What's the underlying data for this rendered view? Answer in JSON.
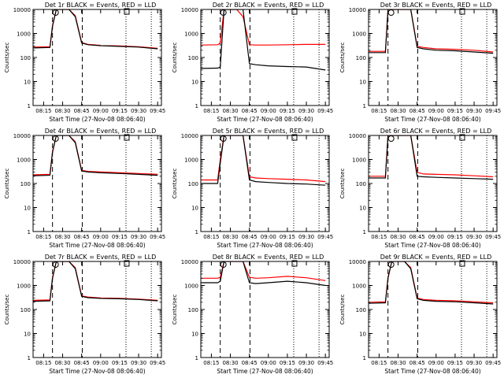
{
  "figure": {
    "background": "#ffffff",
    "series_colors": {
      "events": "#000000",
      "lld": "#ff0000"
    },
    "ylabel": "Counts/sec",
    "xlabel": "Start Time (27-Nov-08 08:06:40)",
    "x_ticks": [
      "08:15",
      "08:30",
      "08:45",
      "09:00",
      "09:15",
      "09:30",
      "09:45"
    ],
    "y_ticks": [
      "1",
      "10",
      "100",
      "1000",
      "10000"
    ],
    "marker_labels": [
      "S",
      "E"
    ]
  },
  "chart_data": [
    {
      "type": "line",
      "title": "Det 1r BLACK = Events, RED = LLD",
      "xlim": [
        "08:06:40",
        "09:48:00"
      ],
      "ylim": [
        1,
        10000
      ],
      "yscale": "log",
      "x": [
        "08:06:40",
        "08:20:00",
        "08:22:00",
        "08:25:00",
        "08:30:00",
        "08:35:00",
        "08:40:00",
        "08:45:00",
        "08:50:00",
        "09:00:00",
        "09:15:00",
        "09:30:00",
        "09:45:00"
      ],
      "series": [
        {
          "name": "Events",
          "color": "#000000",
          "values": [
            250,
            260,
            2000,
            10000,
            10000,
            10000,
            5000,
            400,
            340,
            310,
            290,
            270,
            230
          ]
        },
        {
          "name": "LLD",
          "color": "#ff0000",
          "values": [
            270,
            280,
            2200,
            10000,
            10000,
            10000,
            5500,
            420,
            350,
            320,
            300,
            280,
            240
          ]
        }
      ]
    },
    {
      "type": "line",
      "title": "Det 2r BLACK = Events, RED = LLD",
      "xlim": [
        "08:06:40",
        "09:48:00"
      ],
      "ylim": [
        1,
        10000
      ],
      "yscale": "log",
      "x": [
        "08:06:40",
        "08:20:00",
        "08:22:00",
        "08:25:00",
        "08:30:00",
        "08:35:00",
        "08:40:00",
        "08:45:00",
        "08:50:00",
        "09:00:00",
        "09:15:00",
        "09:30:00",
        "09:45:00"
      ],
      "series": [
        {
          "name": "Events",
          "color": "#000000",
          "values": [
            35,
            36,
            40,
            10000,
            10000,
            10000,
            10000,
            55,
            50,
            45,
            42,
            40,
            30
          ]
        },
        {
          "name": "LLD",
          "color": "#ff0000",
          "values": [
            330,
            340,
            400,
            10000,
            10000,
            10000,
            5000,
            340,
            330,
            330,
            340,
            350,
            350
          ]
        }
      ]
    },
    {
      "type": "line",
      "title": "Det 3r BLACK = Events, RED = LLD",
      "xlim": [
        "08:06:40",
        "09:48:00"
      ],
      "ylim": [
        1,
        10000
      ],
      "yscale": "log",
      "x": [
        "08:06:40",
        "08:20:00",
        "08:22:00",
        "08:25:00",
        "08:30:00",
        "08:35:00",
        "08:40:00",
        "08:45:00",
        "08:50:00",
        "09:00:00",
        "09:15:00",
        "09:30:00",
        "09:45:00"
      ],
      "series": [
        {
          "name": "Events",
          "color": "#000000",
          "values": [
            160,
            160,
            10000,
            10000,
            10000,
            10000,
            10000,
            260,
            230,
            200,
            190,
            170,
            150
          ]
        },
        {
          "name": "LLD",
          "color": "#ff0000",
          "values": [
            180,
            180,
            10000,
            10000,
            10000,
            10000,
            10000,
            290,
            260,
            230,
            220,
            200,
            170
          ]
        }
      ]
    },
    {
      "type": "line",
      "title": "Det 4r BLACK = Events, RED = LLD",
      "xlim": [
        "08:06:40",
        "09:48:00"
      ],
      "ylim": [
        1,
        10000
      ],
      "yscale": "log",
      "x": [
        "08:06:40",
        "08:20:00",
        "08:22:00",
        "08:25:00",
        "08:30:00",
        "08:35:00",
        "08:40:00",
        "08:45:00",
        "08:50:00",
        "09:00:00",
        "09:15:00",
        "09:30:00",
        "09:45:00"
      ],
      "series": [
        {
          "name": "Events",
          "color": "#000000",
          "values": [
            210,
            220,
            2000,
            10000,
            10000,
            10000,
            5000,
            330,
            300,
            280,
            260,
            240,
            220
          ]
        },
        {
          "name": "LLD",
          "color": "#ff0000",
          "values": [
            230,
            240,
            2200,
            10000,
            10000,
            10000,
            5500,
            350,
            320,
            300,
            280,
            260,
            240
          ]
        }
      ]
    },
    {
      "type": "line",
      "title": "Det 5r BLACK = Events, RED = LLD",
      "xlim": [
        "08:06:40",
        "09:48:00"
      ],
      "ylim": [
        1,
        10000
      ],
      "yscale": "log",
      "x": [
        "08:06:40",
        "08:20:00",
        "08:22:00",
        "08:25:00",
        "08:30:00",
        "08:35:00",
        "08:40:00",
        "08:45:00",
        "08:50:00",
        "09:00:00",
        "09:15:00",
        "09:30:00",
        "09:45:00"
      ],
      "series": [
        {
          "name": "Events",
          "color": "#000000",
          "values": [
            100,
            100,
            700,
            10000,
            10000,
            10000,
            10000,
            140,
            120,
            110,
            100,
            95,
            85
          ]
        },
        {
          "name": "LLD",
          "color": "#ff0000",
          "values": [
            140,
            140,
            1000,
            10000,
            10000,
            10000,
            10000,
            190,
            170,
            160,
            150,
            140,
            120
          ]
        }
      ]
    },
    {
      "type": "line",
      "title": "Det 6r BLACK = Events, RED = LLD",
      "xlim": [
        "08:06:40",
        "09:48:00"
      ],
      "ylim": [
        1,
        10000
      ],
      "yscale": "log",
      "x": [
        "08:06:40",
        "08:20:00",
        "08:22:00",
        "08:25:00",
        "08:30:00",
        "08:35:00",
        "08:40:00",
        "08:45:00",
        "08:50:00",
        "09:00:00",
        "09:15:00",
        "09:30:00",
        "09:45:00"
      ],
      "series": [
        {
          "name": "Events",
          "color": "#000000",
          "values": [
            170,
            170,
            10000,
            10000,
            10000,
            10000,
            10000,
            200,
            190,
            180,
            170,
            160,
            150
          ]
        },
        {
          "name": "LLD",
          "color": "#ff0000",
          "values": [
            200,
            200,
            10000,
            10000,
            10000,
            10000,
            10000,
            290,
            250,
            240,
            230,
            210,
            190
          ]
        }
      ]
    },
    {
      "type": "line",
      "title": "Det 7r BLACK = Events, RED = LLD",
      "xlim": [
        "08:06:40",
        "09:48:00"
      ],
      "ylim": [
        1,
        10000
      ],
      "yscale": "log",
      "x": [
        "08:06:40",
        "08:20:00",
        "08:22:00",
        "08:25:00",
        "08:30:00",
        "08:35:00",
        "08:40:00",
        "08:45:00",
        "08:50:00",
        "09:00:00",
        "09:15:00",
        "09:30:00",
        "09:45:00"
      ],
      "series": [
        {
          "name": "Events",
          "color": "#000000",
          "values": [
            220,
            230,
            2000,
            10000,
            10000,
            10000,
            5000,
            350,
            310,
            290,
            280,
            260,
            230
          ]
        },
        {
          "name": "LLD",
          "color": "#ff0000",
          "values": [
            240,
            250,
            2200,
            10000,
            10000,
            10000,
            5500,
            370,
            330,
            300,
            290,
            270,
            240
          ]
        }
      ]
    },
    {
      "type": "line",
      "title": "Det 8r BLACK = Events, RED = LLD",
      "xlim": [
        "08:06:40",
        "09:48:00"
      ],
      "ylim": [
        1,
        10000
      ],
      "yscale": "log",
      "x": [
        "08:06:40",
        "08:20:00",
        "08:22:00",
        "08:25:00",
        "08:30:00",
        "08:35:00",
        "08:40:00",
        "08:45:00",
        "08:50:00",
        "09:00:00",
        "09:15:00",
        "09:30:00",
        "09:45:00"
      ],
      "series": [
        {
          "name": "Events",
          "color": "#000000",
          "values": [
            1300,
            1300,
            1500,
            10000,
            10000,
            10000,
            10000,
            1300,
            1200,
            1300,
            1500,
            1300,
            1000
          ]
        },
        {
          "name": "LLD",
          "color": "#ff0000",
          "values": [
            2000,
            2000,
            2200,
            10000,
            10000,
            10000,
            10000,
            2200,
            2000,
            2100,
            2400,
            2100,
            1600
          ]
        }
      ]
    },
    {
      "type": "line",
      "title": "Det 9r BLACK = Events, RED = LLD",
      "xlim": [
        "08:06:40",
        "09:48:00"
      ],
      "ylim": [
        1,
        10000
      ],
      "yscale": "log",
      "x": [
        "08:06:40",
        "08:20:00",
        "08:22:00",
        "08:25:00",
        "08:30:00",
        "08:35:00",
        "08:40:00",
        "08:45:00",
        "08:50:00",
        "09:00:00",
        "09:15:00",
        "09:30:00",
        "09:45:00"
      ],
      "series": [
        {
          "name": "Events",
          "color": "#000000",
          "values": [
            180,
            190,
            2000,
            10000,
            10000,
            10000,
            5000,
            280,
            240,
            220,
            210,
            190,
            170
          ]
        },
        {
          "name": "LLD",
          "color": "#ff0000",
          "values": [
            200,
            210,
            2200,
            10000,
            10000,
            10000,
            5500,
            300,
            260,
            240,
            230,
            210,
            190
          ]
        }
      ]
    }
  ]
}
